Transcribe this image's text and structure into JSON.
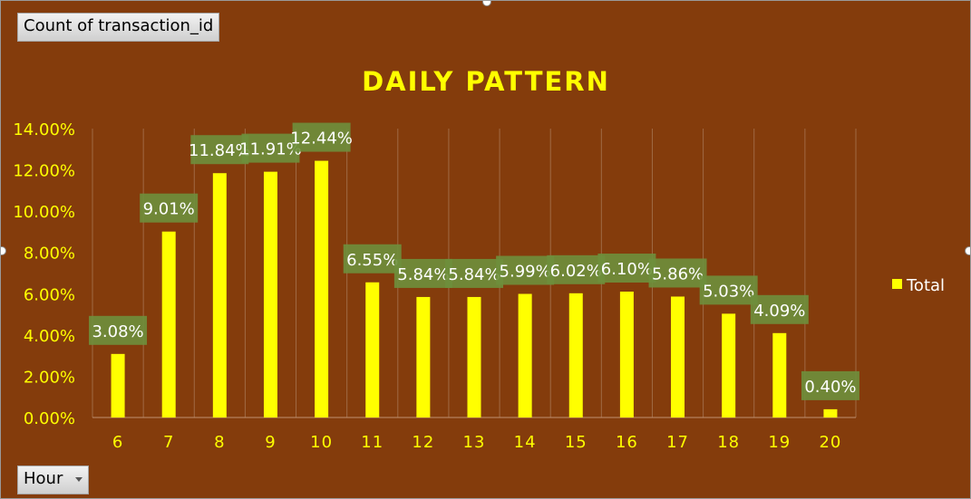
{
  "pivot": {
    "values_field": "Count of transaction_id",
    "axis_field": "Hour"
  },
  "colors": {
    "background": "#843c0c",
    "bar": "#ffff00",
    "text": "#ffff00",
    "label_bg": "#6e8f3c",
    "grid": "#a06a45"
  },
  "chart_data": {
    "type": "bar",
    "title": "DAILY PATTERN",
    "categories": [
      "6",
      "7",
      "8",
      "9",
      "10",
      "11",
      "12",
      "13",
      "14",
      "15",
      "16",
      "17",
      "18",
      "19",
      "20"
    ],
    "series": [
      {
        "name": "Total",
        "values": [
          3.08,
          9.01,
          11.84,
          11.91,
          12.44,
          6.55,
          5.84,
          5.84,
          5.99,
          6.02,
          6.1,
          5.86,
          5.03,
          4.09,
          0.4
        ],
        "labels": [
          "3.08%",
          "9.01%",
          "11.84%",
          "11.91%",
          "12.44%",
          "6.55%",
          "5.84%",
          "5.84%",
          "5.99%",
          "6.02%",
          "6.10%",
          "5.86%",
          "5.03%",
          "4.09%",
          "0.40%"
        ]
      }
    ],
    "ylim": [
      0,
      14
    ],
    "yticks": [
      "0.00%",
      "2.00%",
      "4.00%",
      "6.00%",
      "8.00%",
      "10.00%",
      "12.00%",
      "14.00%"
    ],
    "grid": "vertical",
    "legend": "right"
  }
}
